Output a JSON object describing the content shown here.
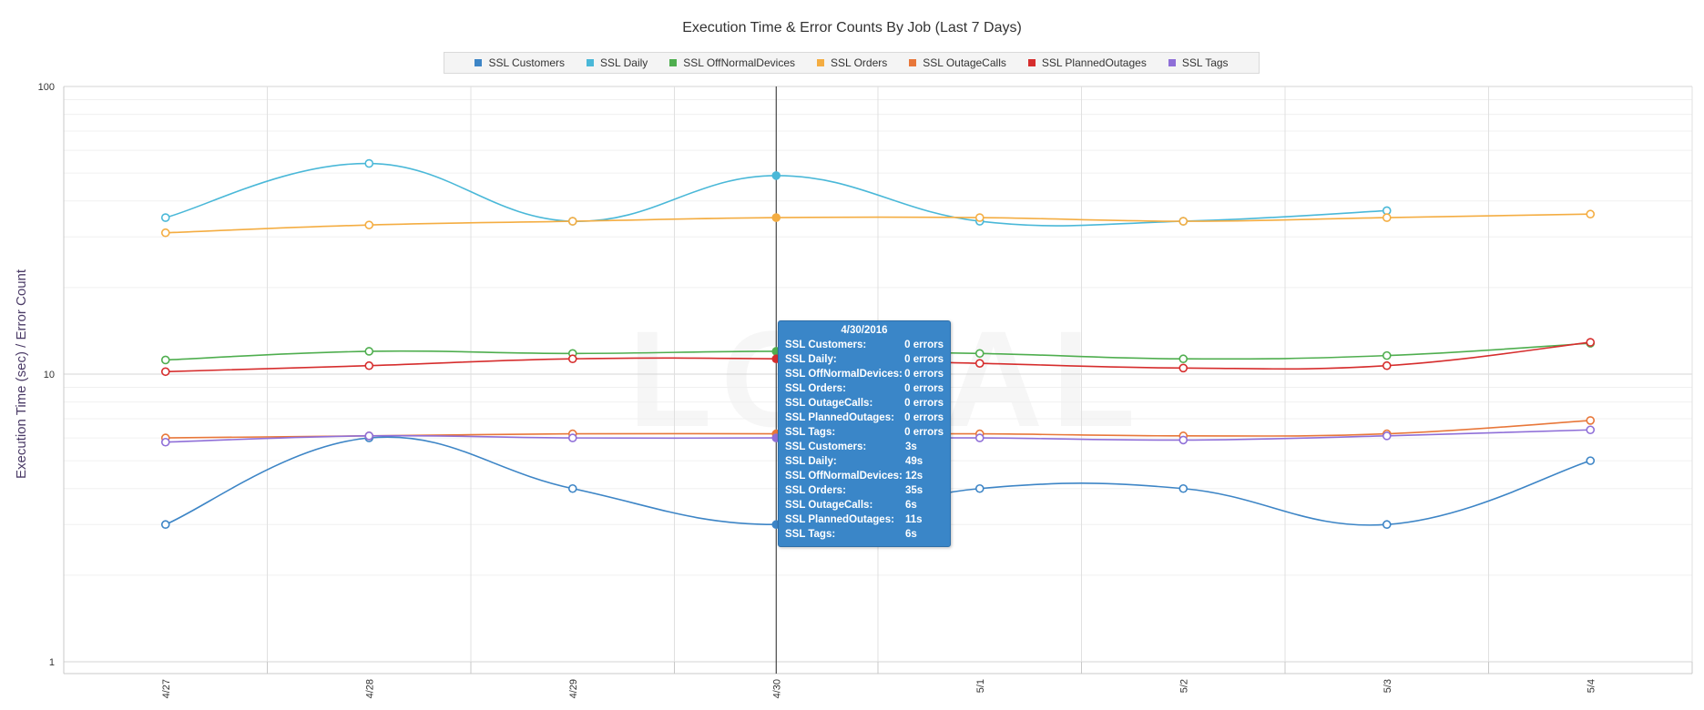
{
  "chart_data": {
    "type": "line",
    "title": "Execution Time & Error Counts By Job (Last 7 Days)",
    "ylabel": "Execution Time (sec) / Error Count",
    "xlabel": "",
    "y_scale": "log",
    "ylim": [
      1,
      100
    ],
    "y_ticks": [
      "1",
      "10",
      "100"
    ],
    "categories": [
      "4/27",
      "4/28",
      "4/29",
      "4/30",
      "5/1",
      "5/2",
      "5/3",
      "5/4"
    ],
    "grid": true,
    "legend_position": "top",
    "series": [
      {
        "name": "SSL Customers",
        "color": "#3d85c6",
        "values": [
          3,
          6,
          4,
          3,
          4,
          4,
          3,
          5
        ]
      },
      {
        "name": "SSL Daily",
        "color": "#4ab8d8",
        "values": [
          35,
          54,
          34,
          49,
          34,
          34,
          37,
          null
        ]
      },
      {
        "name": "SSL OffNormalDevices",
        "color": "#4fae4f",
        "values": [
          11.2,
          12,
          11.8,
          12,
          11.8,
          11.3,
          11.6,
          12.8
        ]
      },
      {
        "name": "SSL Orders",
        "color": "#f4ad42",
        "values": [
          31,
          33,
          34,
          35,
          35,
          34,
          35,
          36
        ]
      },
      {
        "name": "SSL OutageCalls",
        "color": "#e8773a",
        "values": [
          6,
          6.1,
          6.2,
          6.2,
          6.2,
          6.1,
          6.2,
          6.9
        ]
      },
      {
        "name": "SSL PlannedOutages",
        "color": "#d62d2d",
        "values": [
          10.2,
          10.7,
          11.3,
          11.3,
          10.9,
          10.5,
          10.7,
          12.9
        ]
      },
      {
        "name": "SSL Tags",
        "color": "#8f6fd8",
        "values": [
          5.8,
          6.1,
          6,
          6,
          6,
          5.9,
          6.1,
          6.4
        ]
      }
    ],
    "highlight_category": "4/30"
  },
  "tooltip": {
    "title": "4/30/2016",
    "rows": [
      {
        "name": "SSL Customers:",
        "value": "0 errors"
      },
      {
        "name": "SSL Daily:",
        "value": "0 errors"
      },
      {
        "name": "SSL OffNormalDevices:",
        "value": "0 errors"
      },
      {
        "name": "SSL Orders:",
        "value": "0 errors"
      },
      {
        "name": "SSL OutageCalls:",
        "value": "0 errors"
      },
      {
        "name": "SSL PlannedOutages:",
        "value": "0 errors"
      },
      {
        "name": "SSL Tags:",
        "value": "0 errors"
      },
      {
        "name": "SSL Customers:",
        "value": "3s"
      },
      {
        "name": "SSL Daily:",
        "value": "49s"
      },
      {
        "name": "SSL OffNormalDevices:",
        "value": "12s"
      },
      {
        "name": "SSL Orders:",
        "value": "35s"
      },
      {
        "name": "SSL OutageCalls:",
        "value": "6s"
      },
      {
        "name": "SSL PlannedOutages:",
        "value": "11s"
      },
      {
        "name": "SSL Tags:",
        "value": "6s"
      }
    ]
  },
  "watermark": "LOCAL"
}
